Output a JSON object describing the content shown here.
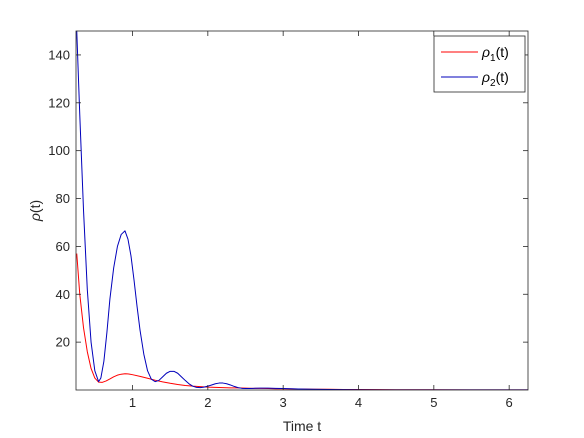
{
  "chart_data": {
    "type": "line",
    "xlabel": "Time t",
    "ylabel": {
      "symbol": "ρ",
      "suffix": "(t)"
    },
    "xlim": [
      0.25,
      6.25
    ],
    "ylim": [
      0,
      150
    ],
    "xticks": [
      1,
      2,
      3,
      4,
      5,
      6
    ],
    "yticks": [
      20,
      40,
      60,
      80,
      100,
      120,
      140
    ],
    "grid": false,
    "legend_position": "top-right",
    "series": [
      {
        "name_symbol": "ρ",
        "name_subscript": "1",
        "name_suffix": "(t)",
        "color": "#ff0000",
        "x": [
          0.26,
          0.3,
          0.35,
          0.4,
          0.45,
          0.5,
          0.55,
          0.6,
          0.65,
          0.7,
          0.75,
          0.8,
          0.85,
          0.9,
          0.95,
          1.0,
          1.1,
          1.2,
          1.3,
          1.4,
          1.5,
          1.6,
          1.7,
          1.8,
          1.9,
          2.0,
          2.1,
          2.2,
          2.3,
          2.4,
          2.5,
          2.6,
          2.7,
          2.8,
          2.9,
          3.0,
          3.2,
          3.4,
          3.6,
          3.8,
          4.0,
          4.5,
          5.0,
          5.5,
          6.0,
          6.25
        ],
        "y": [
          57,
          40,
          26,
          16,
          9,
          5,
          3.3,
          3.2,
          3.8,
          4.6,
          5.5,
          6.2,
          6.6,
          6.8,
          6.7,
          6.4,
          5.7,
          4.9,
          4.1,
          3.4,
          2.8,
          2.3,
          1.9,
          1.6,
          1.4,
          1.2,
          1.1,
          1.0,
          0.9,
          0.9,
          0.8,
          0.7,
          0.7,
          0.6,
          0.5,
          0.5,
          0.4,
          0.3,
          0.3,
          0.2,
          0.2,
          0.1,
          0.1,
          0.05,
          0.05,
          0.05
        ]
      },
      {
        "name_symbol": "ρ",
        "name_subscript": "2",
        "name_suffix": "(t)",
        "color": "#0000bb",
        "x": [
          0.26,
          0.3,
          0.35,
          0.4,
          0.45,
          0.5,
          0.55,
          0.58,
          0.62,
          0.66,
          0.7,
          0.75,
          0.8,
          0.85,
          0.9,
          0.94,
          0.98,
          1.02,
          1.06,
          1.1,
          1.15,
          1.2,
          1.25,
          1.3,
          1.35,
          1.4,
          1.45,
          1.5,
          1.55,
          1.6,
          1.65,
          1.7,
          1.75,
          1.8,
          1.85,
          1.9,
          1.95,
          2.0,
          2.05,
          2.1,
          2.15,
          2.2,
          2.25,
          2.3,
          2.35,
          2.4,
          2.45,
          2.5,
          2.55,
          2.6,
          2.7,
          2.8,
          2.9,
          3.0,
          3.1,
          3.2,
          3.4,
          3.6,
          3.8,
          4.0,
          4.5,
          5.0,
          5.5,
          6.0,
          6.25
        ],
        "y": [
          150,
          115,
          75,
          42,
          20,
          8,
          3.5,
          5,
          12,
          24,
          38,
          51,
          60,
          65,
          66.5,
          63,
          56,
          46,
          35,
          25,
          15,
          8,
          4.5,
          3.5,
          4,
          5.5,
          7,
          7.8,
          7.8,
          7,
          5.5,
          4,
          2.6,
          1.6,
          1.1,
          1.0,
          1.2,
          1.6,
          2.1,
          2.6,
          2.9,
          2.9,
          2.6,
          2.1,
          1.5,
          1.0,
          0.7,
          0.6,
          0.6,
          0.7,
          0.8,
          0.8,
          0.7,
          0.6,
          0.5,
          0.4,
          0.3,
          0.2,
          0.15,
          0.1,
          0.05,
          0.05,
          0.05,
          0.05,
          0.05
        ]
      }
    ]
  }
}
